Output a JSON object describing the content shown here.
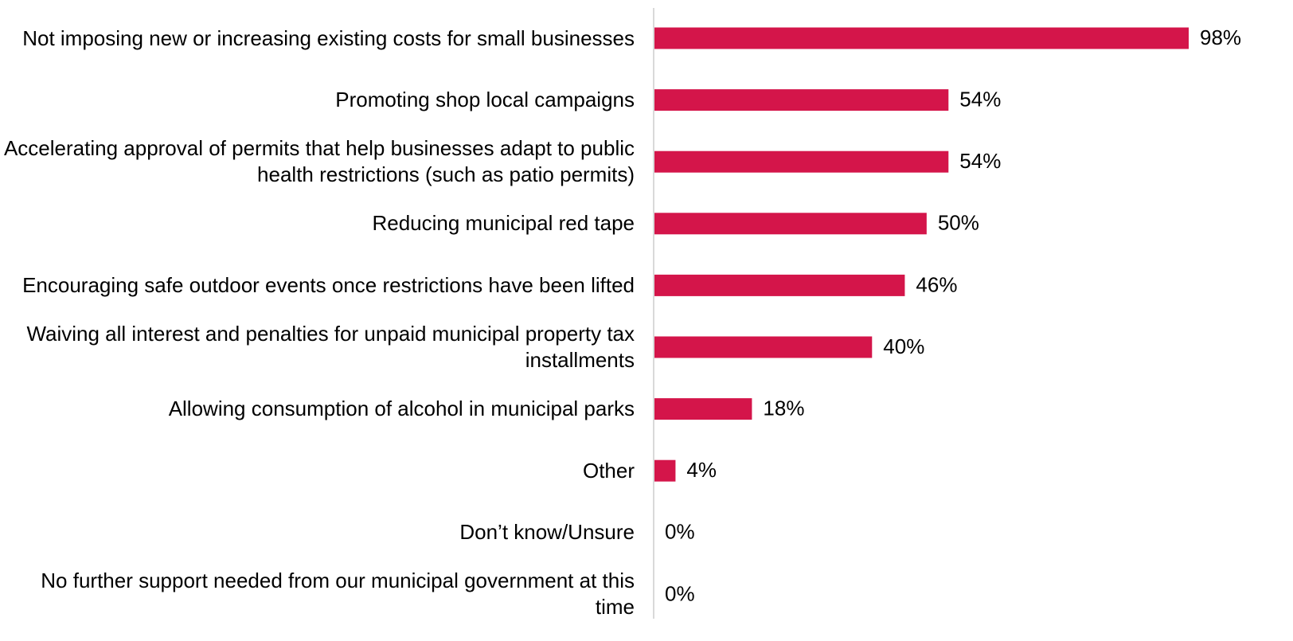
{
  "chart_data": {
    "type": "bar",
    "orientation": "horizontal",
    "color": "#d4154a",
    "categories": [
      "Not imposing new or increasing existing costs for small businesses",
      "Promoting shop local campaigns",
      "Accelerating approval of permits that help businesses adapt to public health restrictions (such as patio permits)",
      "Reducing municipal red tape",
      "Encouraging safe outdoor events once restrictions have been lifted",
      "Waiving all interest and penalties for unpaid municipal property tax installments",
      "Allowing consumption of alcohol in municipal parks",
      "Other",
      "Don’t know/Unsure",
      "No further support needed from our municipal government at this time"
    ],
    "values": [
      98,
      54,
      54,
      50,
      46,
      40,
      18,
      4,
      0,
      0
    ],
    "value_labels": [
      "98%",
      "54%",
      "54%",
      "50%",
      "46%",
      "40%",
      "18%",
      "4%",
      "0%",
      "0%"
    ]
  }
}
